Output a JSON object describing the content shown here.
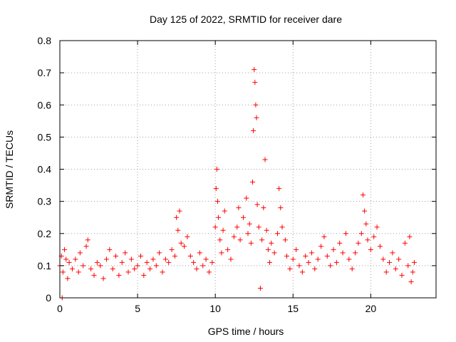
{
  "chart_data": {
    "type": "scatter",
    "title": "Day 125 of 2022, SRMTID for receiver dare",
    "xlabel": "GPS time / hours",
    "ylabel": "SRMTID / TECUs",
    "xlim": [
      0,
      24.2
    ],
    "ylim": [
      0,
      0.8
    ],
    "x_ticks": [
      0,
      5,
      10,
      15,
      20
    ],
    "x_tick_labels": [
      "0",
      "5",
      "10",
      "15",
      "20"
    ],
    "y_ticks": [
      0,
      0.1,
      0.2,
      0.3,
      0.4,
      0.5,
      0.6,
      0.7,
      0.8
    ],
    "y_tick_labels": [
      "0",
      "0.1",
      "0.2",
      "0.3",
      "0.4",
      "0.5",
      "0.6",
      "0.7",
      "0.8"
    ],
    "grid": true,
    "marker": "+",
    "colors": {
      "points": "#ff0000",
      "axes": "#000000",
      "grid": "#a0a0a0"
    },
    "series": [
      {
        "name": "SRMTID",
        "points": [
          [
            0.0,
            0.1
          ],
          [
            0.1,
            0.13
          ],
          [
            0.15,
            0.0
          ],
          [
            0.2,
            0.08
          ],
          [
            0.3,
            0.15
          ],
          [
            0.4,
            0.12
          ],
          [
            0.5,
            0.06
          ],
          [
            0.6,
            0.11
          ],
          [
            0.8,
            0.09
          ],
          [
            1.0,
            0.12
          ],
          [
            1.2,
            0.08
          ],
          [
            1.3,
            0.14
          ],
          [
            1.5,
            0.1
          ],
          [
            1.7,
            0.16
          ],
          [
            1.8,
            0.18
          ],
          [
            2.0,
            0.09
          ],
          [
            2.2,
            0.07
          ],
          [
            2.4,
            0.11
          ],
          [
            2.6,
            0.1
          ],
          [
            2.8,
            0.06
          ],
          [
            3.0,
            0.12
          ],
          [
            3.2,
            0.15
          ],
          [
            3.4,
            0.09
          ],
          [
            3.6,
            0.13
          ],
          [
            3.8,
            0.07
          ],
          [
            4.0,
            0.11
          ],
          [
            4.2,
            0.14
          ],
          [
            4.4,
            0.08
          ],
          [
            4.6,
            0.12
          ],
          [
            4.8,
            0.09
          ],
          [
            5.0,
            0.1
          ],
          [
            5.2,
            0.13
          ],
          [
            5.4,
            0.07
          ],
          [
            5.6,
            0.11
          ],
          [
            5.8,
            0.09
          ],
          [
            6.0,
            0.12
          ],
          [
            6.2,
            0.1
          ],
          [
            6.4,
            0.14
          ],
          [
            6.6,
            0.08
          ],
          [
            6.8,
            0.12
          ],
          [
            7.0,
            0.11
          ],
          [
            7.2,
            0.15
          ],
          [
            7.4,
            0.13
          ],
          [
            7.5,
            0.25
          ],
          [
            7.6,
            0.21
          ],
          [
            7.7,
            0.27
          ],
          [
            7.8,
            0.17
          ],
          [
            8.0,
            0.16
          ],
          [
            8.2,
            0.19
          ],
          [
            8.4,
            0.13
          ],
          [
            8.6,
            0.11
          ],
          [
            8.8,
            0.09
          ],
          [
            9.0,
            0.14
          ],
          [
            9.2,
            0.1
          ],
          [
            9.4,
            0.12
          ],
          [
            9.6,
            0.08
          ],
          [
            9.8,
            0.11
          ],
          [
            10.0,
            0.22
          ],
          [
            10.05,
            0.34
          ],
          [
            10.1,
            0.4
          ],
          [
            10.15,
            0.3
          ],
          [
            10.2,
            0.25
          ],
          [
            10.3,
            0.18
          ],
          [
            10.4,
            0.14
          ],
          [
            10.5,
            0.21
          ],
          [
            10.6,
            0.27
          ],
          [
            10.8,
            0.15
          ],
          [
            11.0,
            0.12
          ],
          [
            11.2,
            0.19
          ],
          [
            11.4,
            0.22
          ],
          [
            11.5,
            0.28
          ],
          [
            11.6,
            0.18
          ],
          [
            11.8,
            0.25
          ],
          [
            12.0,
            0.31
          ],
          [
            12.1,
            0.2
          ],
          [
            12.2,
            0.23
          ],
          [
            12.3,
            0.17
          ],
          [
            12.4,
            0.36
          ],
          [
            12.45,
            0.52
          ],
          [
            12.5,
            0.71
          ],
          [
            12.55,
            0.67
          ],
          [
            12.6,
            0.6
          ],
          [
            12.65,
            0.56
          ],
          [
            12.7,
            0.29
          ],
          [
            12.8,
            0.22
          ],
          [
            12.9,
            0.03
          ],
          [
            13.0,
            0.18
          ],
          [
            13.1,
            0.28
          ],
          [
            13.2,
            0.43
          ],
          [
            13.3,
            0.21
          ],
          [
            13.4,
            0.15
          ],
          [
            13.5,
            0.11
          ],
          [
            13.6,
            0.17
          ],
          [
            13.8,
            0.14
          ],
          [
            14.0,
            0.2
          ],
          [
            14.1,
            0.34
          ],
          [
            14.2,
            0.28
          ],
          [
            14.3,
            0.22
          ],
          [
            14.5,
            0.18
          ],
          [
            14.6,
            0.13
          ],
          [
            14.8,
            0.09
          ],
          [
            15.0,
            0.12
          ],
          [
            15.2,
            0.15
          ],
          [
            15.4,
            0.1
          ],
          [
            15.6,
            0.08
          ],
          [
            15.8,
            0.13
          ],
          [
            16.0,
            0.11
          ],
          [
            16.2,
            0.14
          ],
          [
            16.4,
            0.09
          ],
          [
            16.6,
            0.12
          ],
          [
            16.8,
            0.16
          ],
          [
            17.0,
            0.19
          ],
          [
            17.2,
            0.13
          ],
          [
            17.4,
            0.1
          ],
          [
            17.6,
            0.15
          ],
          [
            17.8,
            0.11
          ],
          [
            18.0,
            0.17
          ],
          [
            18.2,
            0.14
          ],
          [
            18.4,
            0.2
          ],
          [
            18.6,
            0.12
          ],
          [
            18.8,
            0.09
          ],
          [
            19.0,
            0.14
          ],
          [
            19.2,
            0.17
          ],
          [
            19.4,
            0.2
          ],
          [
            19.5,
            0.32
          ],
          [
            19.6,
            0.27
          ],
          [
            19.7,
            0.23
          ],
          [
            19.8,
            0.18
          ],
          [
            20.0,
            0.15
          ],
          [
            20.2,
            0.19
          ],
          [
            20.4,
            0.22
          ],
          [
            20.6,
            0.16
          ],
          [
            20.8,
            0.12
          ],
          [
            21.0,
            0.08
          ],
          [
            21.2,
            0.11
          ],
          [
            21.4,
            0.14
          ],
          [
            21.6,
            0.09
          ],
          [
            21.8,
            0.12
          ],
          [
            22.0,
            0.07
          ],
          [
            22.2,
            0.17
          ],
          [
            22.4,
            0.1
          ],
          [
            22.5,
            0.19
          ],
          [
            22.6,
            0.05
          ],
          [
            22.7,
            0.08
          ],
          [
            22.8,
            0.11
          ]
        ]
      }
    ]
  }
}
